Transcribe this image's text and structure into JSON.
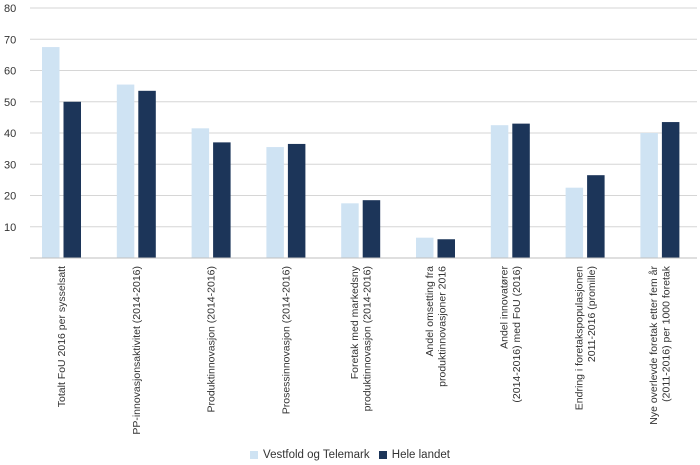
{
  "chart_data": {
    "type": "bar",
    "title": "",
    "xlabel": "",
    "ylabel": "",
    "ylim": [
      0,
      80
    ],
    "yticks": [
      10,
      20,
      30,
      40,
      50,
      60,
      70,
      80
    ],
    "grid": true,
    "legend_position": "bottom",
    "categories": [
      [
        "Totalt FoU 2016 per sysselsatt"
      ],
      [
        "PP-innovasjonsaktivitet (2014-2016)"
      ],
      [
        "Produktinnovasjon (2014-2016)"
      ],
      [
        "Prosessinnovasjon (2014-2016)"
      ],
      [
        "Foretak med markedsny",
        "produktinnovasjon (2014-2016)"
      ],
      [
        "Andel omsetting fra",
        "produktinnovasjoner 2016"
      ],
      [
        "Andel innovatører",
        "(2014-2016) med FoU (2016)"
      ],
      [
        "Endring i foretakspopulasjonen",
        "2011-2016 (promille)"
      ],
      [
        "Nye overlevde foretak etter fem år",
        "(2011-2016) per 1000 foretak"
      ]
    ],
    "series": [
      {
        "name": "Vestfold og Telemark",
        "color": "#cfe3f3",
        "values": [
          67.5,
          55.5,
          41.5,
          35.5,
          17.5,
          6.5,
          42.5,
          22.5,
          40.0
        ]
      },
      {
        "name": "Hele landet",
        "color": "#1c3559",
        "values": [
          50.0,
          53.5,
          37.0,
          36.5,
          18.5,
          6.0,
          43.0,
          26.5,
          43.5
        ]
      }
    ]
  }
}
